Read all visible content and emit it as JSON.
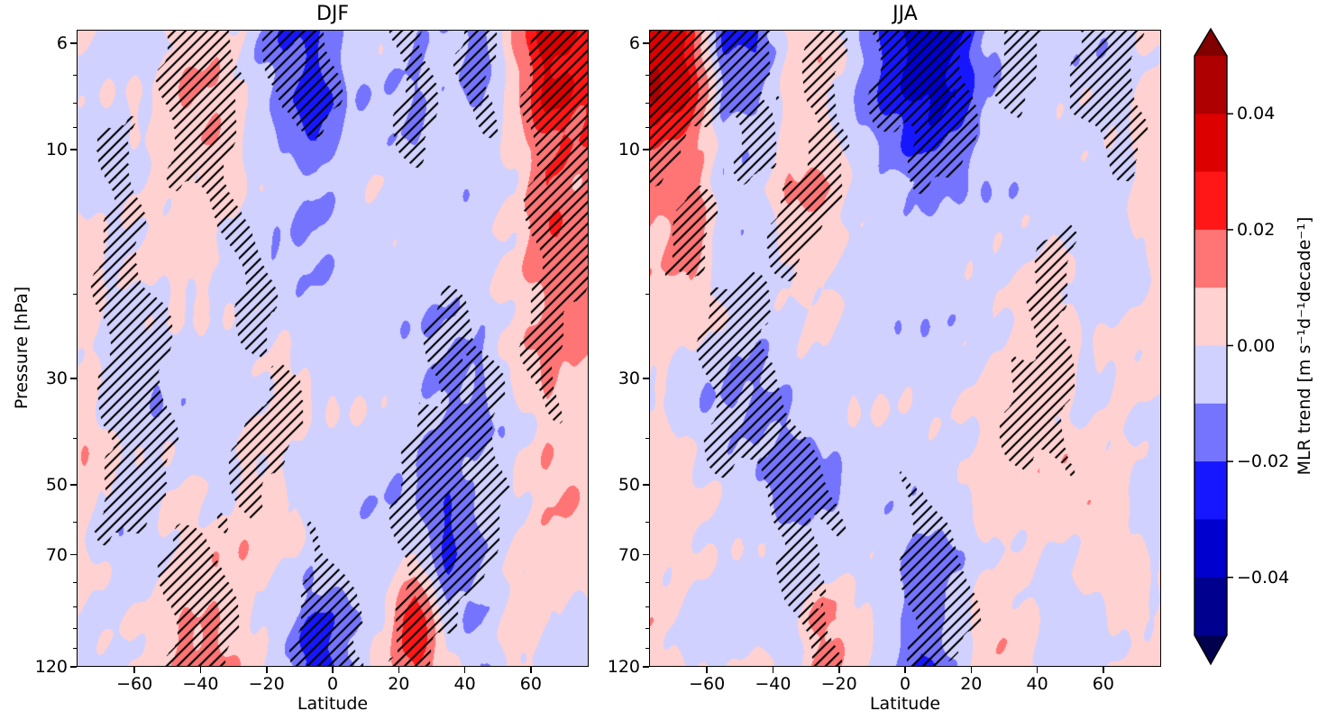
{
  "figure": {
    "background": "#ffffff"
  },
  "chart_data": {
    "type": "filled-contour",
    "x_axis": {
      "label": "Latitude",
      "lim": [
        -77.5,
        77.5
      ],
      "ticks": [
        -60,
        -40,
        -20,
        0,
        20,
        40,
        60
      ],
      "tick_labels": [
        "−60",
        "−40",
        "−20",
        "0",
        "20",
        "40",
        "60"
      ]
    },
    "y_axis": {
      "label": "Pressure [hPa]",
      "scale": "log",
      "lim": [
        5.62,
        120
      ],
      "ticks": [
        6,
        10,
        30,
        50,
        70,
        120
      ],
      "tick_labels": [
        "6",
        "10",
        "30",
        "50",
        "70",
        "120"
      ],
      "minor_ticks": [
        7,
        8,
        9,
        20,
        40,
        60,
        80,
        90,
        100,
        110
      ]
    },
    "levels": [
      -0.05,
      -0.04,
      -0.03,
      -0.02,
      -0.01,
      0.0,
      0.01,
      0.02,
      0.03,
      0.04,
      0.05
    ],
    "band_colors": [
      "#00008E",
      "#0000CE",
      "#1717FF",
      "#7474FF",
      "#D1D1FF",
      "#FFD1D1",
      "#FF7474",
      "#FF1717",
      "#DC0000",
      "#AE0000"
    ],
    "under_color": "#00004D",
    "over_color": "#800000",
    "hatch_pattern": "///",
    "colorbar": {
      "label": "MLR trend [m s⁻¹d⁻¹decade⁻¹]",
      "extend": "both",
      "ticks": [
        0.04,
        0.02,
        0.0,
        -0.02,
        -0.04
      ],
      "tick_labels": [
        "0.04",
        "0.02",
        "0.00",
        "−0.02",
        "−0.04"
      ]
    },
    "panels": [
      {
        "title": "DJF",
        "lat": [
          -75,
          -65,
          -55,
          -45,
          -35,
          -25,
          -15,
          -5,
          5,
          15,
          25,
          35,
          45,
          55,
          65,
          75
        ],
        "pressure": [
          6,
          8,
          10,
          13,
          17,
          22,
          30,
          40,
          55,
          75,
          95,
          120
        ],
        "values": [
          [
            -0.003,
            -0.004,
            -0.004,
            0.008,
            0.008,
            -0.003,
            -0.018,
            -0.022,
            -0.008,
            -0.005,
            -0.012,
            -0.008,
            -0.018,
            0.012,
            0.038,
            0.032
          ],
          [
            -0.003,
            -0.004,
            -0.004,
            0.008,
            0.008,
            -0.003,
            -0.014,
            -0.026,
            -0.006,
            -0.005,
            -0.01,
            -0.005,
            -0.014,
            0.004,
            0.03,
            0.022
          ],
          [
            -0.004,
            -0.003,
            0.004,
            0.006,
            0.006,
            -0.003,
            -0.01,
            -0.018,
            -0.005,
            -0.003,
            -0.008,
            -0.005,
            -0.006,
            0.003,
            0.018,
            0.015
          ],
          [
            -0.004,
            -0.004,
            0.003,
            0.005,
            0.005,
            -0.003,
            -0.008,
            -0.012,
            -0.005,
            -0.003,
            -0.005,
            -0.005,
            -0.005,
            0.003,
            0.025,
            0.012
          ],
          [
            0.005,
            -0.004,
            0.004,
            0.005,
            0.004,
            -0.004,
            -0.006,
            -0.008,
            -0.004,
            -0.003,
            -0.005,
            -0.006,
            -0.005,
            0.003,
            0.015,
            0.018
          ],
          [
            0.005,
            -0.004,
            -0.004,
            -0.004,
            -0.005,
            -0.006,
            -0.005,
            -0.006,
            -0.004,
            -0.003,
            -0.005,
            -0.008,
            -0.006,
            0.003,
            0.012,
            0.015
          ],
          [
            0.005,
            -0.004,
            -0.006,
            -0.004,
            -0.005,
            -0.006,
            0.004,
            -0.004,
            -0.004,
            -0.005,
            -0.006,
            -0.012,
            -0.01,
            0.004,
            0.012,
            0.005
          ],
          [
            0.005,
            -0.004,
            -0.006,
            -0.004,
            -0.005,
            0.004,
            0.005,
            -0.004,
            -0.004,
            -0.005,
            -0.008,
            -0.015,
            -0.012,
            -0.004,
            0.008,
            0.004
          ],
          [
            0.005,
            -0.005,
            -0.004,
            0.004,
            -0.004,
            0.004,
            0.004,
            -0.004,
            -0.005,
            -0.006,
            -0.01,
            -0.022,
            -0.008,
            -0.004,
            0.006,
            0.008
          ],
          [
            0.004,
            -0.004,
            -0.004,
            0.006,
            0.008,
            0.005,
            -0.004,
            -0.008,
            -0.006,
            -0.004,
            0.01,
            -0.018,
            -0.008,
            0.004,
            0.006,
            0.005
          ],
          [
            -0.004,
            -0.004,
            0.004,
            0.014,
            0.015,
            0.005,
            -0.005,
            -0.022,
            -0.015,
            -0.005,
            0.028,
            -0.01,
            -0.01,
            0.005,
            0.004,
            -0.004
          ],
          [
            -0.004,
            -0.004,
            0.004,
            0.01,
            0.012,
            0.004,
            -0.005,
            -0.028,
            -0.01,
            0.005,
            0.022,
            0.004,
            -0.012,
            0.004,
            -0.004,
            -0.005
          ]
        ],
        "significant": [
          [
            0,
            0,
            0,
            1,
            1,
            0,
            1,
            1,
            0,
            0,
            1,
            0,
            1,
            0,
            1,
            1
          ],
          [
            0,
            0,
            0,
            1,
            1,
            0,
            1,
            1,
            0,
            0,
            1,
            0,
            1,
            0,
            1,
            1
          ],
          [
            0,
            1,
            0,
            1,
            1,
            0,
            0,
            0,
            0,
            0,
            1,
            0,
            0,
            0,
            1,
            1
          ],
          [
            0,
            1,
            0,
            0,
            1,
            0,
            0,
            0,
            0,
            0,
            0,
            0,
            0,
            0,
            1,
            1
          ],
          [
            0,
            1,
            0,
            0,
            0,
            1,
            0,
            0,
            0,
            0,
            0,
            0,
            0,
            0,
            1,
            1
          ],
          [
            0,
            1,
            1,
            0,
            0,
            1,
            0,
            0,
            0,
            0,
            0,
            1,
            0,
            0,
            1,
            0
          ],
          [
            0,
            1,
            1,
            0,
            0,
            0,
            1,
            0,
            0,
            0,
            0,
            1,
            1,
            0,
            1,
            0
          ],
          [
            0,
            1,
            1,
            0,
            0,
            1,
            1,
            0,
            0,
            0,
            1,
            1,
            1,
            0,
            0,
            0
          ],
          [
            0,
            1,
            1,
            0,
            0,
            1,
            0,
            0,
            0,
            0,
            1,
            1,
            1,
            0,
            0,
            0
          ],
          [
            0,
            0,
            0,
            1,
            1,
            0,
            0,
            1,
            0,
            0,
            1,
            1,
            1,
            0,
            0,
            0
          ],
          [
            0,
            0,
            0,
            1,
            1,
            0,
            0,
            1,
            1,
            0,
            1,
            1,
            0,
            0,
            0,
            0
          ],
          [
            0,
            0,
            0,
            1,
            1,
            0,
            0,
            1,
            1,
            0,
            1,
            0,
            0,
            0,
            0,
            0
          ]
        ]
      },
      {
        "title": "JJA",
        "lat": [
          -75,
          -65,
          -55,
          -45,
          -35,
          -25,
          -15,
          -5,
          5,
          15,
          25,
          35,
          45,
          55,
          65,
          75
        ],
        "pressure": [
          6,
          8,
          10,
          13,
          17,
          22,
          30,
          40,
          55,
          75,
          95,
          120
        ],
        "values": [
          [
            0.04,
            0.03,
            -0.018,
            -0.02,
            0.006,
            0.008,
            -0.008,
            -0.028,
            -0.04,
            -0.035,
            -0.012,
            -0.006,
            -0.005,
            -0.006,
            -0.005,
            0.005
          ],
          [
            0.035,
            0.025,
            -0.012,
            -0.015,
            0.005,
            0.006,
            -0.006,
            -0.02,
            -0.032,
            -0.028,
            -0.01,
            -0.005,
            -0.005,
            -0.005,
            -0.005,
            0.005
          ],
          [
            0.02,
            0.015,
            -0.006,
            -0.008,
            0.005,
            0.005,
            -0.005,
            -0.012,
            -0.022,
            -0.015,
            -0.008,
            -0.004,
            -0.004,
            -0.005,
            -0.004,
            0.004
          ],
          [
            0.01,
            0.022,
            -0.005,
            -0.006,
            0.008,
            0.01,
            -0.004,
            -0.006,
            -0.01,
            -0.006,
            -0.005,
            -0.004,
            -0.004,
            -0.004,
            -0.004,
            0.004
          ],
          [
            0.005,
            0.015,
            -0.004,
            -0.005,
            0.005,
            0.006,
            -0.004,
            -0.005,
            -0.006,
            -0.005,
            -0.004,
            -0.004,
            0.004,
            -0.004,
            -0.004,
            0.004
          ],
          [
            0.004,
            0.005,
            -0.005,
            -0.008,
            -0.005,
            0.004,
            -0.004,
            -0.005,
            -0.005,
            -0.004,
            -0.004,
            0.004,
            0.005,
            -0.004,
            -0.004,
            0.004
          ],
          [
            0.004,
            -0.004,
            -0.008,
            -0.012,
            -0.006,
            -0.004,
            -0.004,
            -0.004,
            -0.004,
            -0.004,
            0.004,
            0.006,
            0.006,
            -0.004,
            0.004,
            0.004
          ],
          [
            0.004,
            -0.004,
            -0.006,
            -0.01,
            -0.012,
            -0.006,
            -0.004,
            -0.004,
            -0.004,
            -0.004,
            0.004,
            0.006,
            0.006,
            0.004,
            0.004,
            -0.004
          ],
          [
            0.004,
            0.004,
            -0.004,
            -0.006,
            -0.015,
            -0.01,
            -0.005,
            -0.004,
            -0.006,
            -0.005,
            0.004,
            0.004,
            0.004,
            0.004,
            0.004,
            -0.004
          ],
          [
            0.005,
            0.004,
            -0.004,
            -0.004,
            -0.008,
            -0.006,
            -0.004,
            -0.005,
            -0.015,
            -0.008,
            0.004,
            0.004,
            -0.004,
            0.004,
            0.004,
            -0.004
          ],
          [
            0.005,
            -0.004,
            -0.004,
            -0.004,
            -0.005,
            0.018,
            0.004,
            -0.008,
            -0.022,
            -0.01,
            0.004,
            0.005,
            -0.004,
            -0.004,
            0.004,
            0.004
          ],
          [
            0.004,
            -0.004,
            -0.004,
            0.004,
            -0.004,
            0.015,
            0.004,
            -0.006,
            -0.025,
            -0.008,
            0.005,
            0.004,
            -0.004,
            -0.004,
            0.004,
            0.004
          ]
        ],
        "significant": [
          [
            1,
            1,
            1,
            1,
            0,
            1,
            0,
            1,
            1,
            1,
            0,
            1,
            0,
            1,
            1,
            0
          ],
          [
            1,
            1,
            1,
            1,
            0,
            1,
            0,
            1,
            1,
            1,
            0,
            1,
            0,
            1,
            1,
            0
          ],
          [
            1,
            0,
            0,
            1,
            0,
            1,
            0,
            0,
            1,
            1,
            0,
            0,
            0,
            0,
            1,
            0
          ],
          [
            0,
            1,
            0,
            0,
            1,
            1,
            0,
            0,
            0,
            0,
            0,
            0,
            0,
            0,
            0,
            0
          ],
          [
            0,
            1,
            0,
            0,
            1,
            0,
            0,
            0,
            0,
            0,
            0,
            0,
            1,
            0,
            0,
            0
          ],
          [
            0,
            0,
            1,
            1,
            0,
            0,
            0,
            0,
            0,
            0,
            0,
            0,
            1,
            0,
            0,
            0
          ],
          [
            0,
            0,
            1,
            1,
            0,
            0,
            0,
            0,
            0,
            0,
            0,
            1,
            1,
            0,
            0,
            0
          ],
          [
            0,
            0,
            1,
            1,
            1,
            0,
            0,
            0,
            0,
            0,
            0,
            1,
            1,
            0,
            0,
            0
          ],
          [
            0,
            0,
            0,
            0,
            1,
            1,
            0,
            0,
            1,
            0,
            0,
            0,
            0,
            0,
            0,
            0
          ],
          [
            0,
            0,
            0,
            0,
            1,
            0,
            0,
            0,
            1,
            1,
            0,
            0,
            0,
            0,
            0,
            0
          ],
          [
            0,
            0,
            0,
            0,
            0,
            1,
            0,
            0,
            1,
            1,
            0,
            0,
            0,
            0,
            0,
            0
          ],
          [
            0,
            0,
            0,
            0,
            0,
            1,
            0,
            0,
            1,
            0,
            0,
            0,
            0,
            0,
            0,
            0
          ]
        ]
      }
    ]
  }
}
